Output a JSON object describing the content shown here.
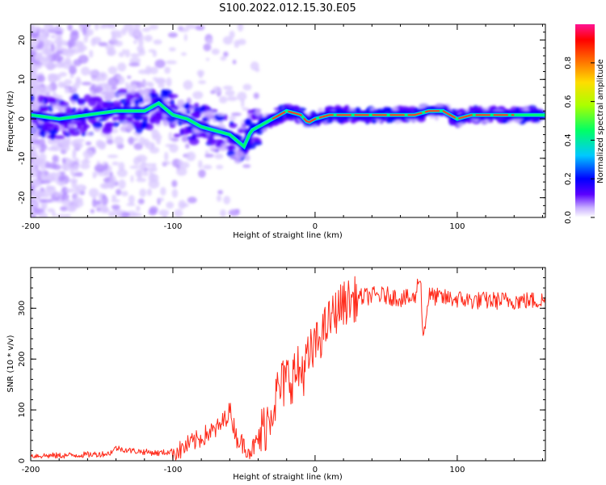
{
  "title": "S100.2022.012.15.30.E05",
  "colors": {
    "snr_line": "#ff2a1a",
    "ridge": "#ff3a2a"
  },
  "chart_data": [
    {
      "type": "heatmap",
      "name": "spectrogram",
      "xlabel": "Height of straight line (km)",
      "ylabel": "Frequency (Hz)",
      "xlim": [
        -200,
        162
      ],
      "ylim": [
        -25,
        24
      ],
      "xticks": [
        -200,
        -100,
        0,
        100
      ],
      "xtick_labels": [
        "-200",
        "-100",
        "0",
        "100"
      ],
      "yticks": [
        -20,
        -10,
        0,
        10,
        20
      ],
      "ytick_labels": [
        "-20",
        "-10",
        "0",
        "10",
        "20"
      ],
      "ridge": {
        "x": [
          -200,
          -180,
          -160,
          -140,
          -120,
          -110,
          -100,
          -90,
          -80,
          -70,
          -60,
          -50,
          -45,
          -40,
          -30,
          -20,
          -10,
          -5,
          0,
          10,
          20,
          40,
          60,
          70,
          80,
          90,
          100,
          110,
          130,
          162
        ],
        "y": [
          1,
          0,
          1,
          2,
          2,
          4,
          1,
          0,
          -2,
          -3,
          -4,
          -7,
          -3,
          -2,
          0,
          2,
          1,
          -1,
          0,
          1,
          1,
          1,
          1,
          1,
          2,
          2,
          0,
          1,
          1,
          1
        ]
      },
      "colorbar": {
        "label": "Normalized spectral amplitude",
        "range": [
          0,
          1
        ],
        "ticks": [
          0.0,
          0.2,
          0.4,
          0.6,
          0.8
        ],
        "tick_labels": [
          "0.0",
          "0.2",
          "0.4",
          "0.6",
          "0.8"
        ],
        "colormap": [
          "#ffffff",
          "#c9b0ff",
          "#5a00ff",
          "#0000ff",
          "#00c8ff",
          "#00ff66",
          "#aaff00",
          "#ffdd00",
          "#ff6600",
          "#ff0000",
          "#ff1493"
        ]
      }
    },
    {
      "type": "line",
      "name": "snr",
      "xlabel": "Height of straight line (km)",
      "ylabel": "SNR (10 * v/v)",
      "xlim": [
        -200,
        162
      ],
      "ylim": [
        0,
        380
      ],
      "xticks": [
        -200,
        -100,
        0,
        100
      ],
      "xtick_labels": [
        "-200",
        "-100",
        "0",
        "100"
      ],
      "yticks": [
        0,
        100,
        200,
        300
      ],
      "ytick_labels": [
        "0",
        "100",
        "200",
        "300"
      ],
      "series": [
        {
          "name": "SNR",
          "x": [
            -200,
            -180,
            -160,
            -145,
            -140,
            -130,
            -110,
            -95,
            -90,
            -80,
            -75,
            -70,
            -65,
            -60,
            -55,
            -50,
            -45,
            -40,
            -35,
            -30,
            -25,
            -20,
            -15,
            -10,
            -5,
            0,
            5,
            10,
            15,
            20,
            25,
            30,
            40,
            50,
            60,
            70,
            74,
            76,
            80,
            90,
            100,
            110,
            120,
            130,
            140,
            150,
            162
          ],
          "y": [
            10,
            10,
            12,
            14,
            25,
            20,
            15,
            20,
            30,
            45,
            55,
            60,
            75,
            100,
            45,
            30,
            20,
            40,
            70,
            110,
            140,
            160,
            170,
            175,
            195,
            225,
            250,
            275,
            295,
            310,
            315,
            320,
            325,
            325,
            320,
            318,
            370,
            240,
            325,
            320,
            318,
            315,
            315,
            315,
            315,
            315,
            315
          ]
        }
      ]
    }
  ]
}
